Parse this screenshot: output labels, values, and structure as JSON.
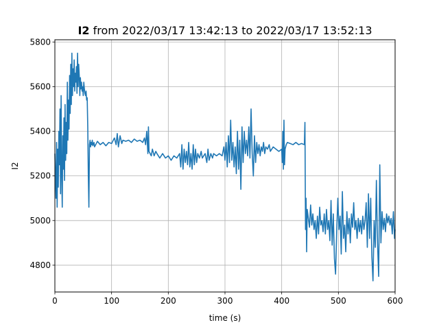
{
  "chart_data": {
    "type": "line",
    "title_bold": "I2",
    "title_rest": " from 2022/03/17 13:42:13 to 2022/03/17 13:52:13",
    "xlabel": "time (s)",
    "ylabel": "I2",
    "xlim": [
      0,
      600
    ],
    "ylim": [
      4680,
      5810
    ],
    "xticks": [
      0,
      100,
      200,
      300,
      400,
      500,
      600
    ],
    "xtick_labels": [
      "0",
      "100",
      "200",
      "300",
      "400",
      "500",
      "600"
    ],
    "yticks": [
      4800,
      5000,
      5200,
      5400,
      5600,
      5800
    ],
    "ytick_labels": [
      "4800",
      "5000",
      "5200",
      "5400",
      "5600",
      "5800"
    ],
    "grid": true,
    "series": [
      {
        "color": "#1f77b4",
        "points": [
          [
            0,
            5300
          ],
          [
            1,
            5200
          ],
          [
            2,
            5100
          ],
          [
            3,
            5350
          ],
          [
            4,
            5060
          ],
          [
            5,
            5320
          ],
          [
            6,
            5150
          ],
          [
            7,
            5400
          ],
          [
            8,
            5250
          ],
          [
            9,
            5500
          ],
          [
            10,
            5120
          ],
          [
            11,
            5560
          ],
          [
            12,
            5220
          ],
          [
            13,
            5060
          ],
          [
            14,
            5380
          ],
          [
            15,
            5230
          ],
          [
            16,
            5460
          ],
          [
            17,
            5180
          ],
          [
            18,
            5520
          ],
          [
            19,
            5270
          ],
          [
            20,
            5440
          ],
          [
            21,
            5300
          ],
          [
            22,
            5620
          ],
          [
            23,
            5360
          ],
          [
            24,
            5540
          ],
          [
            25,
            5410
          ],
          [
            26,
            5650
          ],
          [
            27,
            5480
          ],
          [
            28,
            5700
          ],
          [
            29,
            5520
          ],
          [
            30,
            5750
          ],
          [
            31,
            5560
          ],
          [
            32,
            5680
          ],
          [
            33,
            5600
          ],
          [
            34,
            5720
          ],
          [
            35,
            5580
          ],
          [
            36,
            5660
          ],
          [
            37,
            5620
          ],
          [
            38,
            5690
          ],
          [
            39,
            5570
          ],
          [
            40,
            5750
          ],
          [
            41,
            5600
          ],
          [
            42,
            5700
          ],
          [
            43,
            5650
          ],
          [
            44,
            5560
          ],
          [
            45,
            5640
          ],
          [
            46,
            5590
          ],
          [
            47,
            5620
          ],
          [
            48,
            5580
          ],
          [
            49,
            5600
          ],
          [
            50,
            5560
          ],
          [
            51,
            5620
          ],
          [
            52,
            5590
          ],
          [
            53,
            5570
          ],
          [
            54,
            5560
          ],
          [
            55,
            5580
          ],
          [
            56,
            5540
          ],
          [
            57,
            5550
          ],
          [
            58,
            5420
          ],
          [
            59,
            5200
          ],
          [
            60,
            5060
          ],
          [
            61,
            5340
          ],
          [
            62,
            5360
          ],
          [
            63,
            5330
          ],
          [
            64,
            5350
          ],
          [
            65,
            5340
          ],
          [
            66,
            5360
          ],
          [
            67,
            5335
          ],
          [
            68,
            5345
          ],
          [
            69,
            5350
          ],
          [
            70,
            5330
          ],
          [
            75,
            5355
          ],
          [
            80,
            5340
          ],
          [
            85,
            5350
          ],
          [
            90,
            5335
          ],
          [
            95,
            5350
          ],
          [
            100,
            5345
          ],
          [
            105,
            5370
          ],
          [
            108,
            5340
          ],
          [
            110,
            5390
          ],
          [
            112,
            5330
          ],
          [
            115,
            5380
          ],
          [
            118,
            5345
          ],
          [
            120,
            5360
          ],
          [
            125,
            5355
          ],
          [
            130,
            5360
          ],
          [
            135,
            5350
          ],
          [
            140,
            5365
          ],
          [
            145,
            5355
          ],
          [
            150,
            5360
          ],
          [
            155,
            5350
          ],
          [
            158,
            5370
          ],
          [
            160,
            5340
          ],
          [
            162,
            5400
          ],
          [
            164,
            5300
          ],
          [
            165,
            5420
          ],
          [
            166,
            5310
          ],
          [
            168,
            5300
          ],
          [
            170,
            5290
          ],
          [
            172,
            5320
          ],
          [
            175,
            5290
          ],
          [
            178,
            5310
          ],
          [
            180,
            5300
          ],
          [
            185,
            5280
          ],
          [
            190,
            5300
          ],
          [
            195,
            5280
          ],
          [
            200,
            5290
          ],
          [
            205,
            5270
          ],
          [
            210,
            5290
          ],
          [
            215,
            5280
          ],
          [
            220,
            5300
          ],
          [
            222,
            5240
          ],
          [
            224,
            5340
          ],
          [
            226,
            5230
          ],
          [
            228,
            5320
          ],
          [
            230,
            5260
          ],
          [
            232,
            5310
          ],
          [
            234,
            5250
          ],
          [
            236,
            5350
          ],
          [
            238,
            5240
          ],
          [
            240,
            5300
          ],
          [
            242,
            5230
          ],
          [
            244,
            5340
          ],
          [
            246,
            5250
          ],
          [
            248,
            5320
          ],
          [
            250,
            5260
          ],
          [
            252,
            5300
          ],
          [
            255,
            5280
          ],
          [
            258,
            5310
          ],
          [
            260,
            5280
          ],
          [
            265,
            5300
          ],
          [
            268,
            5260
          ],
          [
            270,
            5320
          ],
          [
            272,
            5270
          ],
          [
            275,
            5300
          ],
          [
            278,
            5280
          ],
          [
            280,
            5300
          ],
          [
            285,
            5290
          ],
          [
            290,
            5300
          ],
          [
            295,
            5290
          ],
          [
            298,
            5330
          ],
          [
            300,
            5270
          ],
          [
            302,
            5350
          ],
          [
            304,
            5240
          ],
          [
            306,
            5380
          ],
          [
            308,
            5260
          ],
          [
            310,
            5450
          ],
          [
            312,
            5270
          ],
          [
            314,
            5350
          ],
          [
            316,
            5240
          ],
          [
            318,
            5330
          ],
          [
            320,
            5210
          ],
          [
            322,
            5400
          ],
          [
            324,
            5230
          ],
          [
            326,
            5360
          ],
          [
            328,
            5140
          ],
          [
            330,
            5420
          ],
          [
            332,
            5260
          ],
          [
            334,
            5400
          ],
          [
            336,
            5300
          ],
          [
            338,
            5360
          ],
          [
            340,
            5290
          ],
          [
            342,
            5420
          ],
          [
            344,
            5280
          ],
          [
            346,
            5500
          ],
          [
            348,
            5300
          ],
          [
            350,
            5200
          ],
          [
            352,
            5380
          ],
          [
            354,
            5260
          ],
          [
            356,
            5350
          ],
          [
            358,
            5300
          ],
          [
            360,
            5340
          ],
          [
            362,
            5290
          ],
          [
            364,
            5330
          ],
          [
            366,
            5310
          ],
          [
            368,
            5350
          ],
          [
            370,
            5300
          ],
          [
            372,
            5330
          ],
          [
            375,
            5320
          ],
          [
            378,
            5340
          ],
          [
            380,
            5310
          ],
          [
            385,
            5330
          ],
          [
            390,
            5320
          ],
          [
            395,
            5310
          ],
          [
            400,
            5320
          ],
          [
            401,
            5260
          ],
          [
            402,
            5400
          ],
          [
            403,
            5230
          ],
          [
            404,
            5450
          ],
          [
            405,
            5250
          ],
          [
            406,
            5320
          ],
          [
            408,
            5340
          ],
          [
            410,
            5350
          ],
          [
            415,
            5345
          ],
          [
            420,
            5340
          ],
          [
            425,
            5350
          ],
          [
            430,
            5340
          ],
          [
            435,
            5345
          ],
          [
            440,
            5340
          ],
          [
            441,
            5440
          ],
          [
            442,
            4960
          ],
          [
            443,
            5100
          ],
          [
            444,
            4860
          ],
          [
            445,
            5050
          ],
          [
            447,
            5010
          ],
          [
            449,
            4970
          ],
          [
            451,
            5070
          ],
          [
            453,
            4980
          ],
          [
            455,
            5030
          ],
          [
            457,
            4960
          ],
          [
            459,
            5000
          ],
          [
            461,
            4920
          ],
          [
            463,
            5020
          ],
          [
            465,
            4940
          ],
          [
            467,
            5060
          ],
          [
            469,
            4980
          ],
          [
            471,
            5000
          ],
          [
            473,
            4950
          ],
          [
            475,
            5030
          ],
          [
            477,
            4940
          ],
          [
            479,
            5050
          ],
          [
            481,
            4960
          ],
          [
            483,
            5000
          ],
          [
            485,
            4910
          ],
          [
            487,
            5090
          ],
          [
            489,
            4890
          ],
          [
            491,
            5030
          ],
          [
            493,
            4830
          ],
          [
            495,
            4760
          ],
          [
            497,
            4950
          ],
          [
            499,
            5100
          ],
          [
            501,
            4960
          ],
          [
            503,
            5020
          ],
          [
            505,
            4850
          ],
          [
            507,
            5130
          ],
          [
            509,
            4920
          ],
          [
            511,
            4980
          ],
          [
            513,
            4860
          ],
          [
            515,
            5040
          ],
          [
            517,
            4940
          ],
          [
            519,
            5010
          ],
          [
            521,
            4900
          ],
          [
            523,
            5030
          ],
          [
            525,
            4970
          ],
          [
            527,
            5080
          ],
          [
            529,
            4960
          ],
          [
            531,
            5000
          ],
          [
            533,
            4920
          ],
          [
            535,
            5010
          ],
          [
            537,
            4950
          ],
          [
            539,
            5000
          ],
          [
            541,
            4940
          ],
          [
            543,
            5020
          ],
          [
            545,
            4960
          ],
          [
            547,
            5000
          ],
          [
            549,
            5080
          ],
          [
            551,
            4880
          ],
          [
            553,
            5120
          ],
          [
            555,
            4920
          ],
          [
            557,
            5100
          ],
          [
            559,
            4840
          ],
          [
            561,
            4730
          ],
          [
            563,
            5000
          ],
          [
            565,
            4880
          ],
          [
            567,
            5180
          ],
          [
            569,
            4900
          ],
          [
            571,
            4750
          ],
          [
            573,
            5250
          ],
          [
            575,
            4900
          ],
          [
            577,
            5040
          ],
          [
            579,
            4960
          ],
          [
            581,
            5010
          ],
          [
            583,
            4950
          ],
          [
            585,
            5030
          ],
          [
            587,
            4990
          ],
          [
            589,
            5020
          ],
          [
            591,
            4980
          ],
          [
            593,
            5010
          ],
          [
            595,
            4940
          ],
          [
            597,
            5040
          ],
          [
            599,
            4920
          ],
          [
            600,
            4960
          ]
        ]
      }
    ]
  }
}
